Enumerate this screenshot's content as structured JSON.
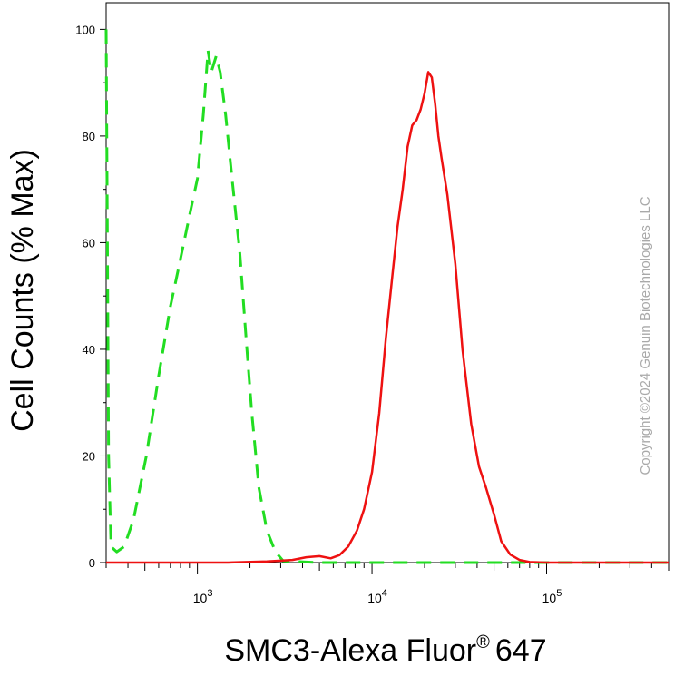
{
  "chart_data": {
    "type": "line",
    "xlabel": "SMC3-Alexa Fluor",
    "xlabel_superscript": "®",
    "xlabel_suffix": "647",
    "ylabel": "Cell Counts (% Max)",
    "x_scale": "log",
    "xlim": [
      300,
      500000
    ],
    "ylim": [
      0,
      105
    ],
    "y_ticks": [
      {
        "value": 0,
        "label": "0"
      },
      {
        "value": 20,
        "label": "20"
      },
      {
        "value": 40,
        "label": "40"
      },
      {
        "value": 60,
        "label": "60"
      },
      {
        "value": 80,
        "label": "80"
      },
      {
        "value": 100,
        "label": "100"
      }
    ],
    "x_ticks": [
      {
        "value": 1000,
        "base": "10",
        "exp": "3"
      },
      {
        "value": 10000,
        "base": "10",
        "exp": "4"
      },
      {
        "value": 100000,
        "base": "10",
        "exp": "5"
      }
    ],
    "grid": false,
    "legend": "none",
    "series": [
      {
        "style": "dashed",
        "color": "#22dd22",
        "points": [
          [
            300,
            100
          ],
          [
            305,
            60
          ],
          [
            310,
            20
          ],
          [
            320,
            3
          ],
          [
            345,
            2
          ],
          [
            380,
            3
          ],
          [
            430,
            8
          ],
          [
            510,
            20
          ],
          [
            600,
            35
          ],
          [
            700,
            48
          ],
          [
            800,
            57
          ],
          [
            900,
            65
          ],
          [
            1000,
            72
          ],
          [
            1080,
            84
          ],
          [
            1150,
            96
          ],
          [
            1200,
            92
          ],
          [
            1280,
            95
          ],
          [
            1350,
            92
          ],
          [
            1450,
            84
          ],
          [
            1580,
            72
          ],
          [
            1750,
            58
          ],
          [
            1900,
            42
          ],
          [
            2050,
            28
          ],
          [
            2250,
            14
          ],
          [
            2500,
            6
          ],
          [
            2800,
            2
          ],
          [
            3100,
            0.3
          ],
          [
            5000,
            0
          ],
          [
            500000,
            0
          ]
        ]
      },
      {
        "style": "solid",
        "color": "#ee1111",
        "points": [
          [
            300,
            0
          ],
          [
            1500,
            0
          ],
          [
            2500,
            0.2
          ],
          [
            3500,
            0.5
          ],
          [
            4200,
            1.0
          ],
          [
            5000,
            1.2
          ],
          [
            5800,
            0.8
          ],
          [
            6500,
            1.4
          ],
          [
            7300,
            3
          ],
          [
            8200,
            6
          ],
          [
            9000,
            10
          ],
          [
            10000,
            17
          ],
          [
            11000,
            28
          ],
          [
            12000,
            42
          ],
          [
            13000,
            53
          ],
          [
            14000,
            63
          ],
          [
            15000,
            70
          ],
          [
            16000,
            78
          ],
          [
            17000,
            82
          ],
          [
            18000,
            83
          ],
          [
            19000,
            85
          ],
          [
            20000,
            88
          ],
          [
            21000,
            92
          ],
          [
            22000,
            91
          ],
          [
            23000,
            86
          ],
          [
            24000,
            80
          ],
          [
            25000,
            76
          ],
          [
            27000,
            69
          ],
          [
            30000,
            56
          ],
          [
            33000,
            40
          ],
          [
            37000,
            26
          ],
          [
            41000,
            18
          ],
          [
            45000,
            14
          ],
          [
            50000,
            9
          ],
          [
            55000,
            4
          ],
          [
            62000,
            1.5
          ],
          [
            70000,
            0.5
          ],
          [
            80000,
            0.1
          ],
          [
            100000,
            0
          ],
          [
            500000,
            0
          ]
        ]
      }
    ]
  },
  "watermark": "Copyright ©2024 Genuin Biotechnologies LLC"
}
